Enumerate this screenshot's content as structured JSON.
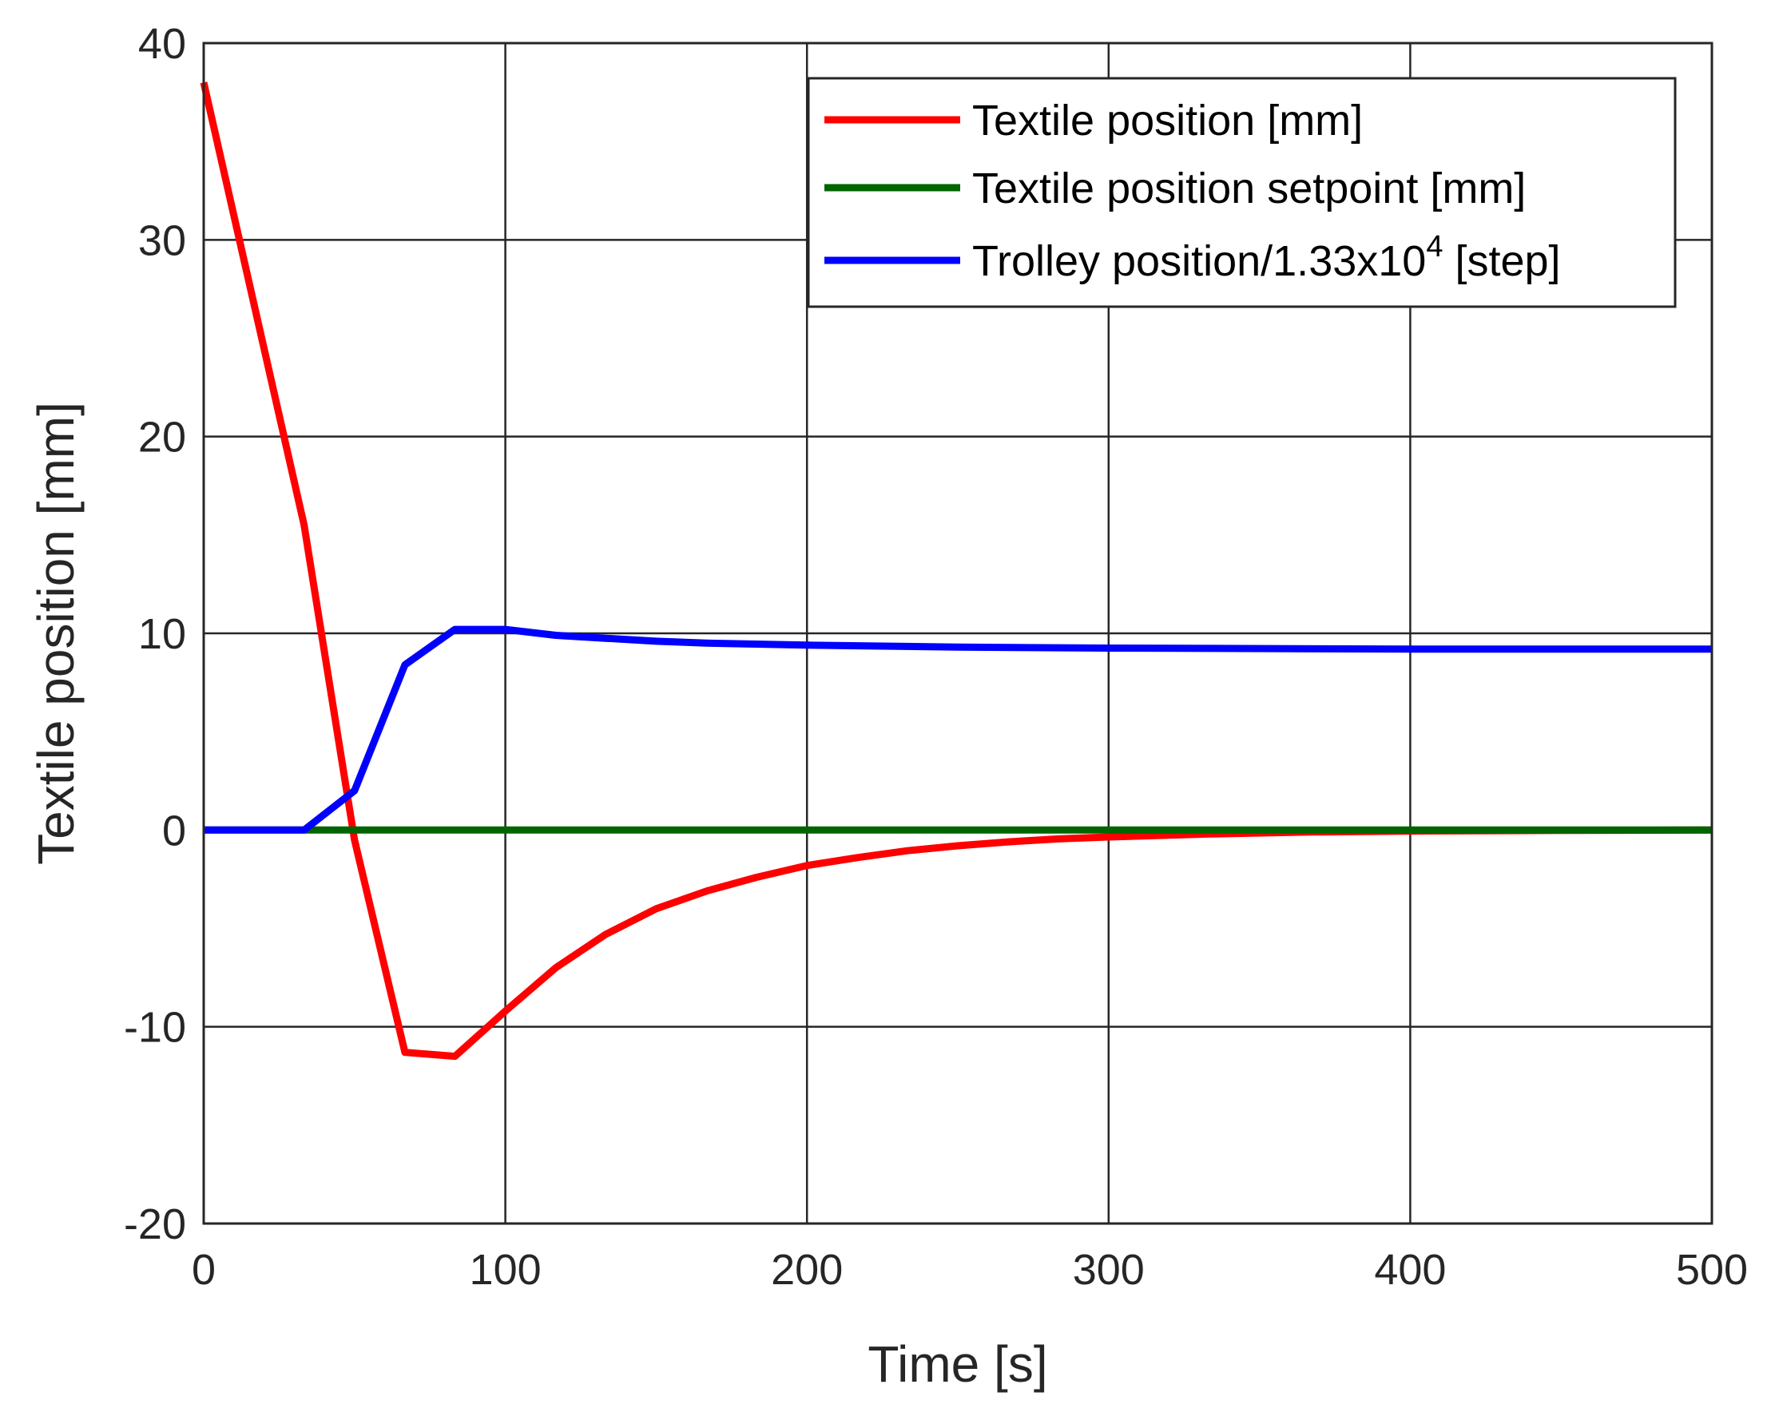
{
  "chart_data": {
    "type": "line",
    "xlabel": "Time [s]",
    "ylabel": "Textile position [mm]",
    "xlim": [
      0,
      500
    ],
    "ylim": [
      -20,
      40
    ],
    "xticks": [
      0,
      100,
      200,
      300,
      400,
      500
    ],
    "yticks": [
      -20,
      -10,
      0,
      10,
      20,
      30,
      40
    ],
    "xtick_labels": [
      "0",
      "100",
      "200",
      "300",
      "400",
      "500"
    ],
    "ytick_labels": [
      "-20",
      "-10",
      "0",
      "10",
      "20",
      "30",
      "40"
    ],
    "grid": true,
    "legend_position": "top-right",
    "series": [
      {
        "name": "Textile position [mm]",
        "color": "#ff0000",
        "x": [
          0,
          33.3,
          50,
          66.7,
          83.3,
          100,
          116.7,
          133.3,
          150,
          166.7,
          183.3,
          200,
          216.7,
          233.3,
          250,
          266.7,
          283.3,
          300,
          333.3,
          366.7,
          400,
          450,
          500
        ],
        "y": [
          38,
          15.5,
          -0.5,
          -11.3,
          -11.5,
          -9.2,
          -7,
          -5.3,
          -4,
          -3.1,
          -2.4,
          -1.8,
          -1.4,
          -1.05,
          -0.8,
          -0.6,
          -0.45,
          -0.35,
          -0.2,
          -0.1,
          -0.05,
          -0.02,
          0
        ]
      },
      {
        "name": "Textile position setpoint [mm]",
        "color": "#006400",
        "x": [
          0,
          500
        ],
        "y": [
          0,
          0
        ]
      },
      {
        "name": "Trolley position/1.33x10",
        "name_superscript": "4",
        "name_suffix": "[step]",
        "color": "#0000ff",
        "x": [
          0,
          33.3,
          50,
          66.7,
          83.3,
          100,
          116.7,
          133.3,
          150,
          166.7,
          200,
          250,
          300,
          400,
          500
        ],
        "y": [
          0,
          0,
          2,
          8.4,
          10.2,
          10.2,
          9.9,
          9.75,
          9.6,
          9.5,
          9.4,
          9.3,
          9.25,
          9.2,
          9.2
        ]
      }
    ]
  }
}
